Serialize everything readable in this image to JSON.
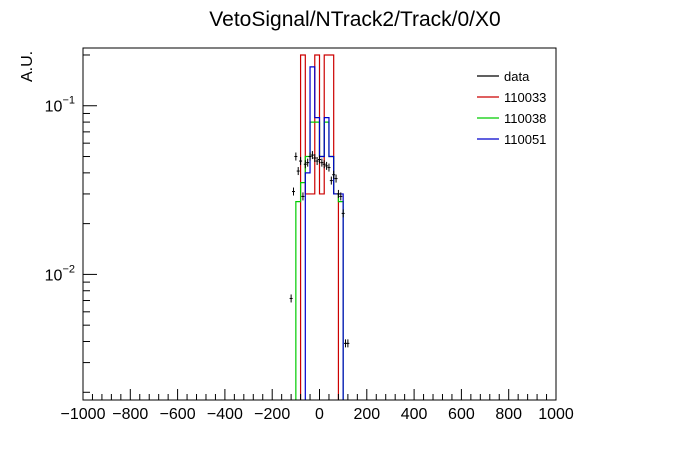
{
  "chart_data": {
    "type": "line",
    "title": "VetoSignal/NTrack2/Track/0/X0",
    "xlabel": "",
    "ylabel": "A.U.",
    "xlim": [
      -1000,
      1000
    ],
    "ylim": [
      0.0018,
      0.22
    ],
    "log_y": true,
    "grid": false,
    "legend_position": "top-right",
    "x_ticks": [
      -1000,
      -800,
      -600,
      -400,
      -200,
      0,
      200,
      400,
      600,
      800,
      1000
    ],
    "x_tick_labels": [
      "−1000",
      "−800",
      "−600",
      "−400",
      "−200",
      "0",
      "200",
      "400",
      "600",
      "800",
      "1000"
    ],
    "y_ticks": [
      0.01,
      0.1
    ],
    "y_tick_labels": [
      {
        "base": "10",
        "exp": "−2"
      },
      {
        "base": "10",
        "exp": "−1"
      }
    ],
    "series": [
      {
        "name": "data",
        "color": "#000000",
        "style": "points",
        "x": [
          -120,
          -110,
          -100,
          -90,
          -80,
          -70,
          -60,
          -50,
          -40,
          -30,
          -20,
          -10,
          0,
          10,
          20,
          30,
          40,
          50,
          60,
          70,
          80,
          90,
          100,
          110,
          120
        ],
        "y": [
          0.0072,
          0.031,
          0.05,
          0.041,
          0.047,
          0.029,
          0.045,
          0.046,
          0.05,
          0.051,
          0.049,
          0.047,
          0.048,
          0.046,
          0.045,
          0.044,
          0.043,
          0.036,
          0.039,
          0.037,
          0.03,
          0.029,
          0.023,
          0.0039,
          0.0039
        ]
      },
      {
        "name": "110033",
        "color": "#cc0000",
        "style": "step",
        "edges": [
          -80,
          -60,
          -40,
          -20,
          0,
          20,
          40,
          60,
          80
        ],
        "values": [
          0.2,
          0.03,
          0.03,
          0.2,
          0.03,
          0.2,
          0.2,
          0.03
        ]
      },
      {
        "name": "110038",
        "color": "#00cc00",
        "style": "step",
        "edges": [
          -100,
          -80,
          -60,
          -40,
          -20,
          0,
          20,
          40,
          60,
          80,
          100
        ],
        "values": [
          0.027,
          0.035,
          0.05,
          0.08,
          0.08,
          0.05,
          0.08,
          0.05,
          0.03,
          0.027
        ]
      },
      {
        "name": "110051",
        "color": "#0000cc",
        "style": "step",
        "edges": [
          -60,
          -40,
          -20,
          0,
          20,
          40,
          60,
          80,
          100
        ],
        "values": [
          0.04,
          0.17,
          0.085,
          0.05,
          0.085,
          0.05,
          0.03,
          0.03
        ]
      }
    ]
  }
}
